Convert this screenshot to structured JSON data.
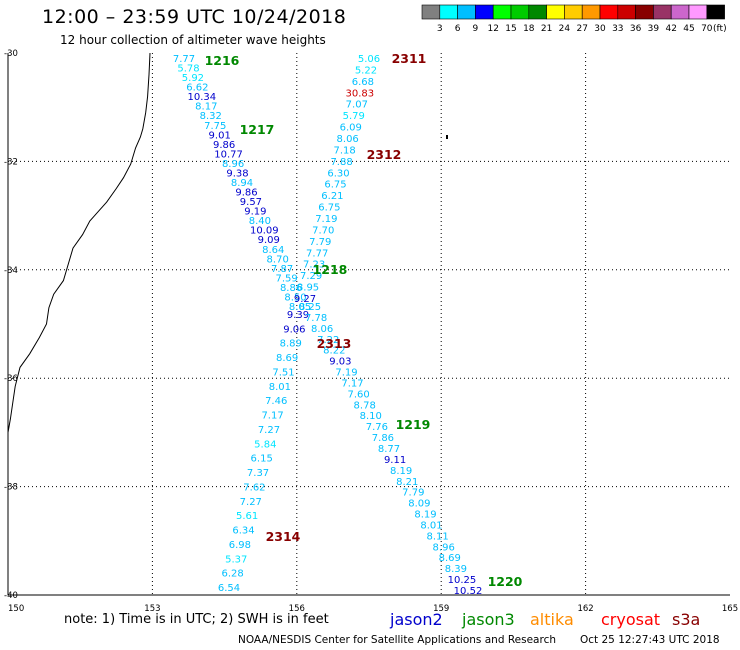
{
  "title": "12:00 – 23:59 UTC 10/24/2018",
  "subtitle": "12 hour collection of altimeter wave heights",
  "legend": {
    "colors": [
      "#808080",
      "#00ffff",
      "#00bfff",
      "#0000ff",
      "#00ff00",
      "#00cc00",
      "#008800",
      "#ffff00",
      "#ffcc00",
      "#ff9900",
      "#ff0000",
      "#cc0000",
      "#880000",
      "#993366",
      "#cc66cc",
      "#ff99ff",
      "#000000"
    ],
    "labels": [
      "3",
      "6",
      "9",
      "12",
      "15",
      "18",
      "21",
      "24",
      "27",
      "30",
      "33",
      "36",
      "39",
      "42",
      "45",
      "70"
    ],
    "unit": "(ft)"
  },
  "axes": {
    "lat_labels": [
      "-30",
      "-32",
      "-34",
      "-36",
      "-38",
      "-40"
    ],
    "lon_labels": [
      "150",
      "153",
      "156",
      "159",
      "162",
      "165"
    ]
  },
  "satellite_colors": {
    "jason2": "#0000cc",
    "jason3": "#008800",
    "altika": "#ff8c00",
    "cryosat": "#ff0000",
    "s3a": "#880000"
  },
  "tracks": {
    "track_a_values": [
      "7.77",
      "5.78",
      "5.92",
      "6.62",
      "10.34",
      "8.17",
      "8.32",
      "7.75",
      "9.01",
      "9.86",
      "10.77",
      "8.96",
      "9.38",
      "8.94",
      "9.86",
      "9.57",
      "9.19",
      "8.40",
      "10.09",
      "9.09",
      "8.64",
      "8.70",
      "7.87",
      "7.59",
      "8.86",
      "8.50",
      "8.05",
      "9.39",
      "9.06",
      "8.89",
      "8.69",
      "7.51",
      "8.01",
      "7.46",
      "7.17",
      "7.27",
      "5.84",
      "6.15",
      "7.37",
      "7.62",
      "7.27",
      "5.61",
      "6.34",
      "6.98",
      "5.37",
      "6.28",
      "6.54"
    ],
    "track_b_values": [
      "5.06",
      "5.22",
      "6.68",
      "30.83",
      "7.07",
      "5.79",
      "6.09",
      "8.06",
      "7.18",
      "7.88",
      "6.30",
      "6.75",
      "6.21",
      "6.75",
      "7.19",
      "7.70",
      "7.79",
      "7.77",
      "7.23",
      "7.29",
      "8.95",
      "9.27",
      "8.25",
      "7.78",
      "8.06",
      "7.22",
      "8.22",
      "9.03",
      "7.19",
      "7.17",
      "7.60",
      "8.78",
      "8.10",
      "7.76",
      "7.86",
      "8.77",
      "9.11",
      "8.19",
      "8.21",
      "7.79",
      "8.09",
      "8.19",
      "8.01",
      "8.11",
      "8.96",
      "8.69",
      "8.39",
      "10.25",
      "10.52"
    ]
  },
  "time_labels": {
    "a_times": [
      "1216",
      "1217",
      "1218",
      "1219",
      "1220"
    ],
    "b_times": [
      "2311",
      "2312",
      "2313",
      "2314"
    ]
  },
  "footer": {
    "note": "note: 1) Time is in UTC; 2) SWH is in feet",
    "jason2": "jason2",
    "jason3": "jason3",
    "altika": "altika",
    "cryosat": "cryosat",
    "s3a": "s3a",
    "credit": "NOAA/NESDIS Center for Satellite Applications and Research",
    "timestamp": "Oct 25 12:27:43 UTC 2018"
  }
}
